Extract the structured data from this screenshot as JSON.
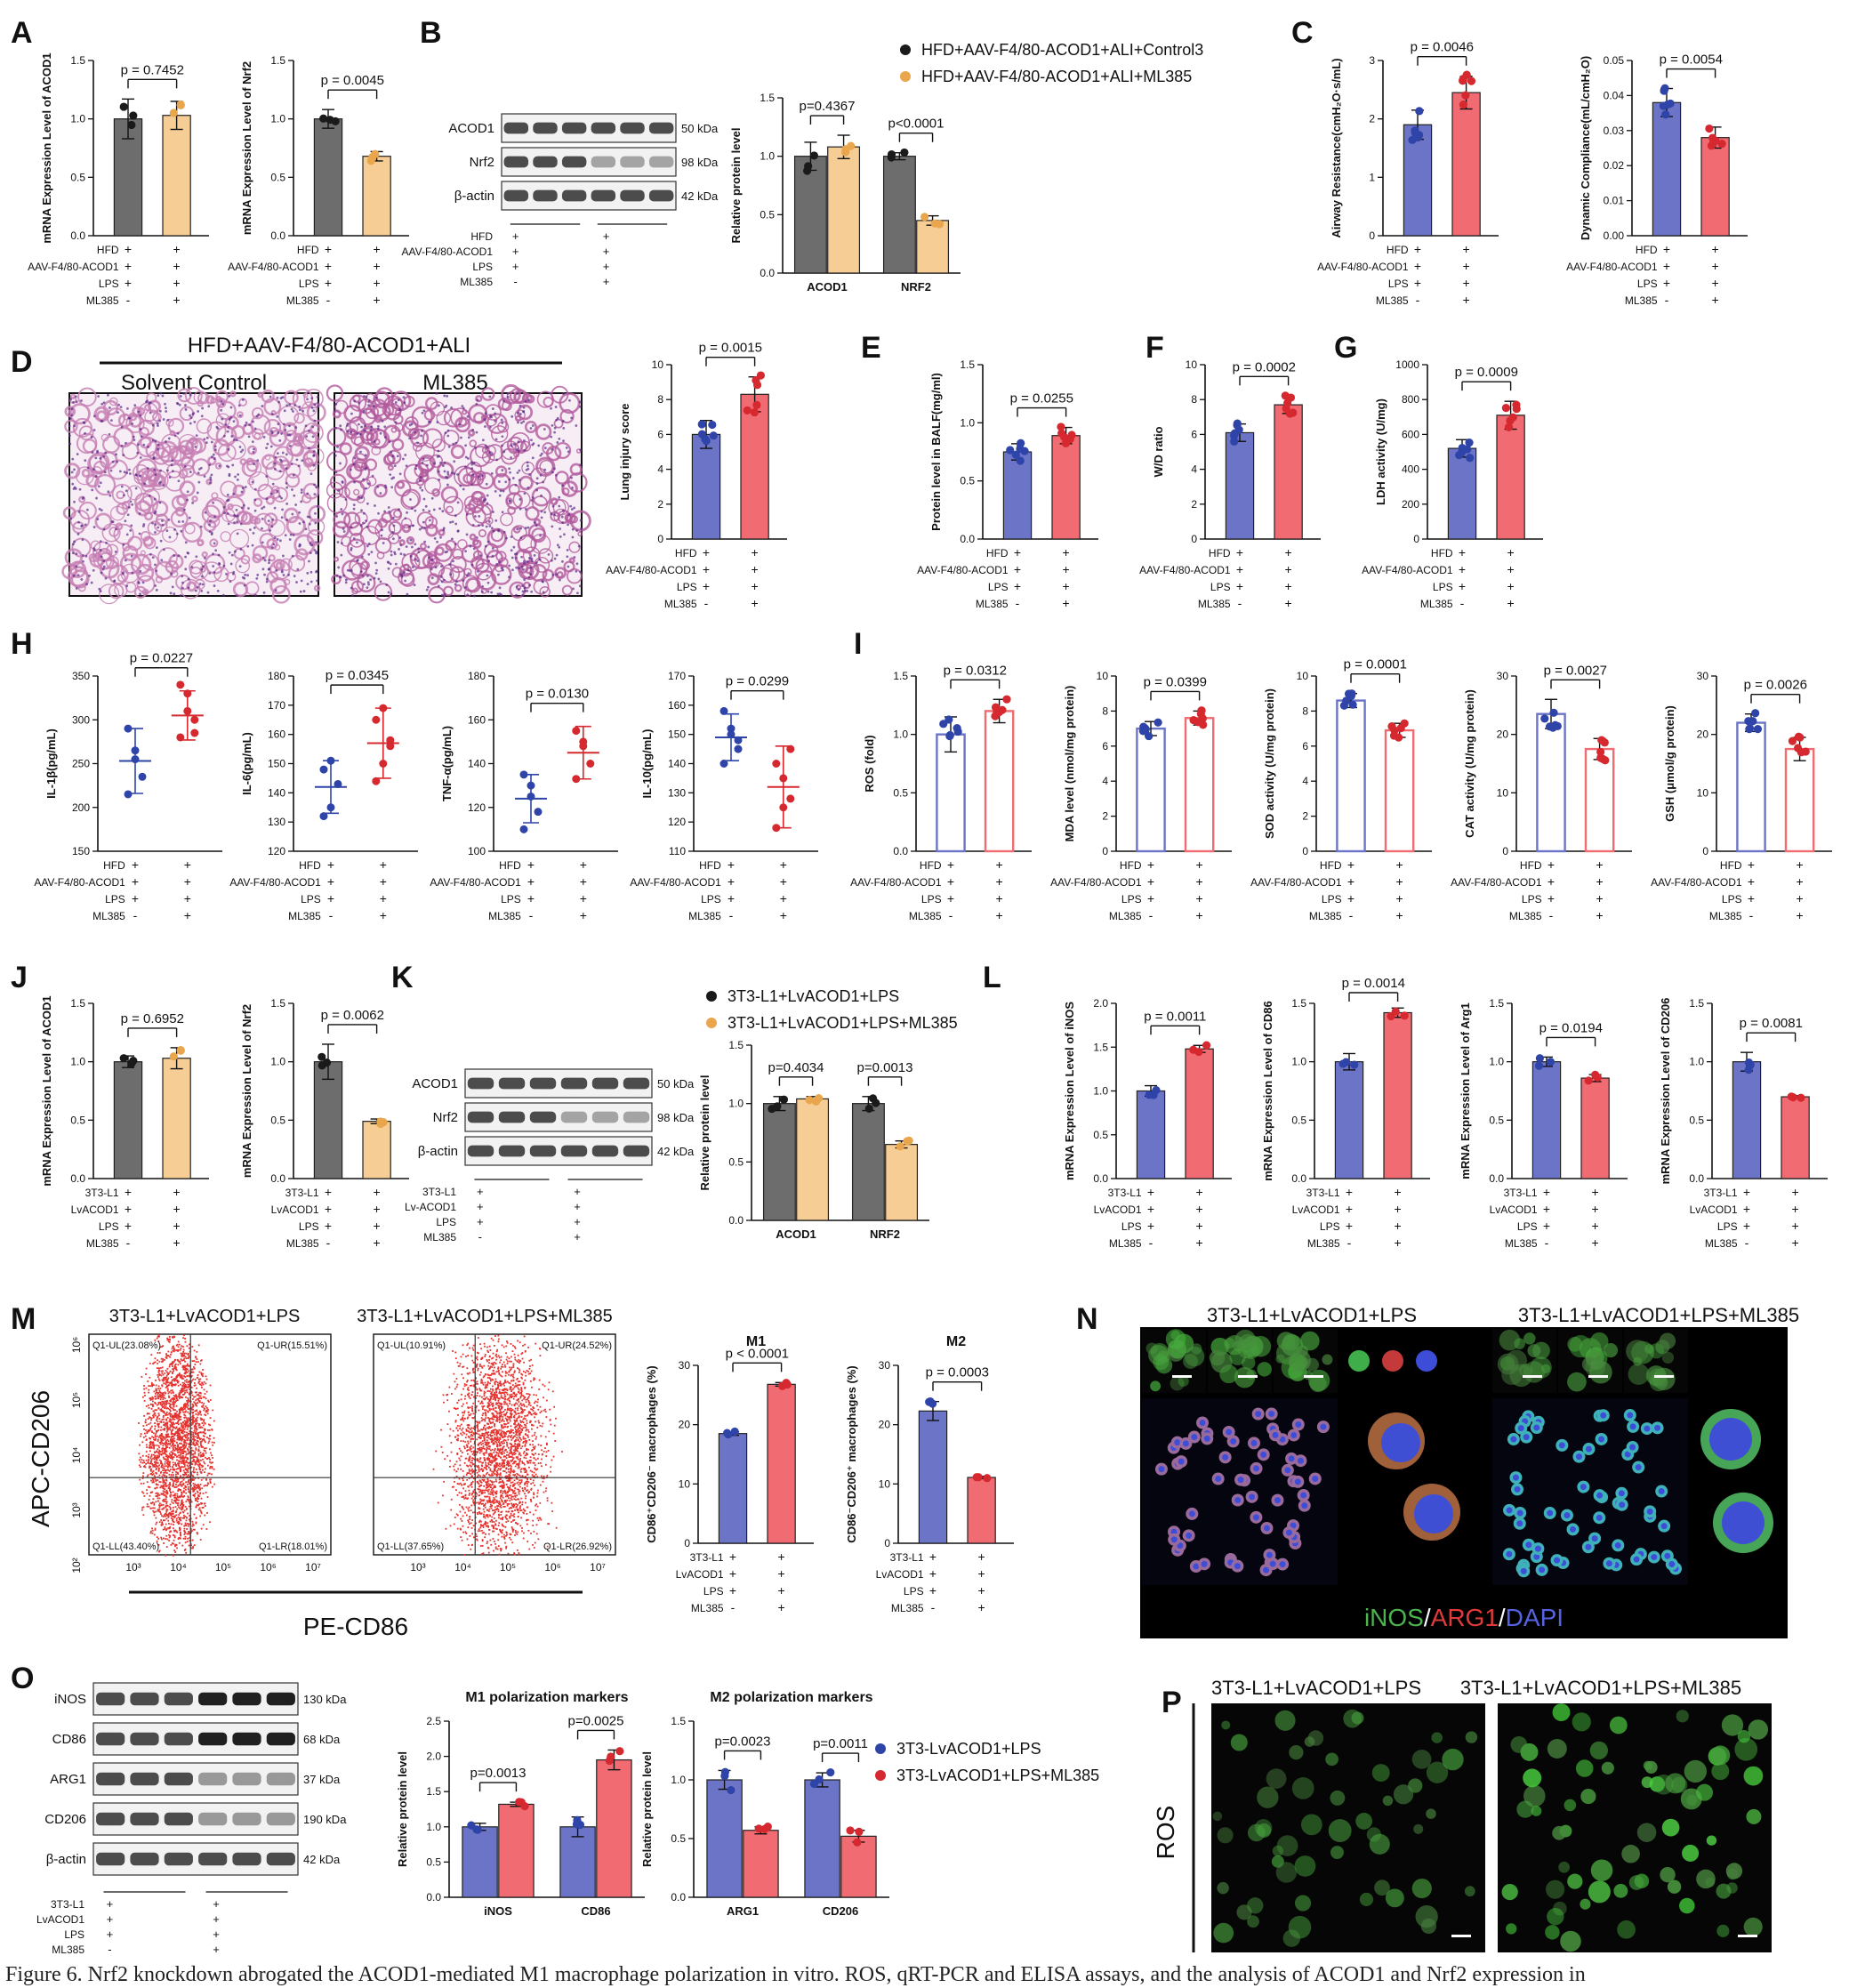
{
  "figure_caption": "Figure 6. Nrf2 knockdown abrogated the ACOD1-mediated M1 macrophage polarization in vitro. ROS, qRT-PCR and ELISA assays, and the analysis of ACOD1 and Nrf2 expression in",
  "colors": {
    "gray": "#6d6d6d",
    "tan": "#f6cd94",
    "tan_dot": "#e9a64c",
    "blue": "#6b74c6",
    "blue_dot": "#2f44a8",
    "red": "#f06b72",
    "red_dot": "#d6282f",
    "dot_dark": "#1a1a1a"
  },
  "conditions": {
    "hfd": [
      "HFD",
      "AAV-F4/80-ACOD1",
      "LPS",
      "ML385"
    ],
    "cell": [
      "3T3-L1",
      "LvACOD1",
      "LPS",
      "ML385"
    ],
    "signs": [
      [
        "+",
        "+",
        "+",
        "-"
      ],
      [
        "+",
        "+",
        "+",
        "+"
      ]
    ]
  },
  "panels": {
    "A": {
      "letter": "A"
    },
    "B": {
      "letter": "B"
    },
    "C": {
      "letter": "C"
    },
    "D": {
      "letter": "D"
    },
    "E": {
      "letter": "E"
    },
    "F": {
      "letter": "F"
    },
    "G": {
      "letter": "G"
    },
    "H": {
      "letter": "H"
    },
    "I": {
      "letter": "I"
    },
    "J": {
      "letter": "J"
    },
    "K": {
      "letter": "K"
    },
    "L": {
      "letter": "L"
    },
    "M": {
      "letter": "M"
    },
    "N": {
      "letter": "N"
    },
    "O": {
      "letter": "O"
    },
    "P": {
      "letter": "P"
    }
  },
  "legends": {
    "B": [
      "HFD+AAV-F4/80-ACOD1+ALI+Control3",
      "HFD+AAV-F4/80-ACOD1+ALI+ML385"
    ],
    "K": [
      "3T3-L1+LvACOD1+LPS",
      "3T3-L1+LvACOD1+LPS+ML385"
    ],
    "O": [
      "3T3-LvACOD1+LPS",
      "3T3-LvACOD1+LPS+ML385"
    ]
  },
  "blots": {
    "B": {
      "rows": [
        {
          "label": "ACOD1",
          "kda": "50 kDa"
        },
        {
          "label": "Nrf2",
          "kda": "98 kDa"
        },
        {
          "label": "β-actin",
          "kda": "42 kDa"
        }
      ],
      "cond": [
        "HFD",
        "AAV-F4/80-ACOD1",
        "LPS",
        "ML385"
      ]
    },
    "K": {
      "rows": [
        {
          "label": "ACOD1",
          "kda": "50 kDa"
        },
        {
          "label": "Nrf2",
          "kda": "98 kDa"
        },
        {
          "label": "β-actin",
          "kda": "42 kDa"
        }
      ],
      "cond": [
        "3T3-L1",
        "Lv-ACOD1",
        "LPS",
        "ML385"
      ]
    },
    "O": {
      "rows": [
        {
          "label": "iNOS",
          "kda": "130 kDa"
        },
        {
          "label": "CD86",
          "kda": "68 kDa"
        },
        {
          "label": "ARG1",
          "kda": "37 kDa"
        },
        {
          "label": "CD206",
          "kda": "190 kDa"
        },
        {
          "label": "β-actin",
          "kda": "42 kDa"
        }
      ],
      "cond": [
        "3T3-L1",
        "LvACOD1",
        "LPS",
        "ML385"
      ]
    }
  },
  "histology": {
    "header": "HFD+AAV-F4/80-ACOD1+ALI",
    "left": "Solvent Control",
    "right": "ML385"
  },
  "flow": {
    "titles": [
      "3T3-L1+LvACOD1+LPS",
      "3T3-L1+LvACOD1+LPS+ML385"
    ],
    "ylabel": "APC-CD206",
    "xlabel": "PE-CD86",
    "plots": [
      {
        "UL": "Q1-UL(23.08%)",
        "UR": "Q1-UR(15.51%)",
        "LL": "Q1-LL(43.40%)",
        "LR": "Q1-LR(18.01%)"
      },
      {
        "UL": "Q1-UL(10.91%)",
        "UR": "Q1-UR(24.52%)",
        "LL": "Q1-LL(37.65%)",
        "LR": "Q1-LR(26.92%)"
      }
    ],
    "xticks": [
      "10³",
      "10⁴",
      "10⁵",
      "10⁶",
      "10⁷"
    ],
    "yticks": [
      "10⁶",
      "10⁵",
      "10⁴",
      "10³",
      "10²"
    ]
  },
  "if_panel": {
    "titles": [
      "3T3-L1+LvACOD1+LPS",
      "3T3-L1+LvACOD1+LPS+ML385"
    ],
    "label_parts": [
      "iNOS",
      "/",
      "ARG1",
      "/",
      "DAPI"
    ]
  },
  "ros_panel": {
    "titles": [
      "3T3-L1+LvACOD1+LPS",
      "3T3-L1+LvACOD1+LPS+ML385"
    ],
    "ylabel": "ROS"
  },
  "chart_data": [
    {
      "id": "A1",
      "type": "bar",
      "ylabel": "mRNA Expression Level of ACOD1",
      "ylim": [
        0,
        1.5
      ],
      "yticks": [
        "0.0",
        "0.5",
        "1.0",
        "1.5"
      ],
      "values": [
        1.0,
        1.03
      ],
      "errors": [
        0.17,
        0.12
      ],
      "pvalue": "p = 0.7452",
      "style": "grayTan",
      "cond": "hfd"
    },
    {
      "id": "A2",
      "type": "bar",
      "ylabel": "mRNA Expression Level of Nrf2",
      "ylim": [
        0,
        1.5
      ],
      "yticks": [
        "0.0",
        "0.5",
        "1.0",
        "1.5"
      ],
      "values": [
        1.0,
        0.68
      ],
      "errors": [
        0.08,
        0.04
      ],
      "pvalue": "p = 0.0045",
      "style": "grayTan",
      "cond": "hfd"
    },
    {
      "id": "B",
      "type": "bar",
      "ylabel": "Relative protein level",
      "ylim": [
        0,
        1.5
      ],
      "yticks": [
        "0.0",
        "0.5",
        "1.0",
        "1.5"
      ],
      "categories": [
        "ACOD1",
        "NRF2"
      ],
      "values": [
        [
          1.0,
          1.08
        ],
        [
          1.0,
          0.45
        ]
      ],
      "errors": [
        [
          0.12,
          0.1
        ],
        [
          0.03,
          0.04
        ]
      ],
      "pvalues": [
        "p=0.4367",
        "p<0.0001"
      ],
      "style": "grayTan"
    },
    {
      "id": "C1",
      "type": "bar",
      "ylabel": "Airway Resistance(cmH₂O·s/mL)",
      "ylim": [
        0,
        3
      ],
      "yticks": [
        "0",
        "1",
        "2",
        "3"
      ],
      "values": [
        1.9,
        2.45
      ],
      "errors": [
        0.25,
        0.28
      ],
      "pvalue": "p = 0.0046",
      "style": "blueRed",
      "cond": "hfd"
    },
    {
      "id": "C2",
      "type": "bar",
      "ylabel": "Dynamic Compliance(mL/cmH₂O)",
      "ylim": [
        0,
        0.05
      ],
      "yticks": [
        "0.00",
        "0.01",
        "0.02",
        "0.03",
        "0.04",
        "0.05"
      ],
      "values": [
        0.038,
        0.028
      ],
      "errors": [
        0.004,
        0.003
      ],
      "pvalue": "p = 0.0054",
      "style": "blueRed",
      "cond": "hfd"
    },
    {
      "id": "D",
      "type": "bar",
      "ylabel": "Lung injury score",
      "ylim": [
        0,
        10
      ],
      "yticks": [
        "0",
        "2",
        "4",
        "6",
        "8",
        "10"
      ],
      "values": [
        6.0,
        8.3
      ],
      "errors": [
        0.8,
        1.0
      ],
      "pvalue": "p = 0.0015",
      "style": "blueRed",
      "cond": "hfd"
    },
    {
      "id": "E",
      "type": "bar",
      "ylabel": "Protein level in BALF(mg/ml)",
      "ylim": [
        0,
        1.5
      ],
      "yticks": [
        "0.0",
        "0.5",
        "1.0",
        "1.5"
      ],
      "values": [
        0.75,
        0.89
      ],
      "errors": [
        0.07,
        0.07
      ],
      "pvalue": "p = 0.0255",
      "style": "blueRed",
      "cond": "hfd"
    },
    {
      "id": "F",
      "type": "bar",
      "ylabel": "W/D ratio",
      "ylim": [
        0,
        10
      ],
      "yticks": [
        "0",
        "2",
        "4",
        "6",
        "8",
        "10"
      ],
      "values": [
        6.1,
        7.7
      ],
      "errors": [
        0.5,
        0.5
      ],
      "pvalue": "p = 0.0002",
      "style": "blueRed",
      "cond": "hfd"
    },
    {
      "id": "G",
      "type": "bar",
      "ylabel": "LDH activity (U/mg)",
      "ylim": [
        0,
        1000
      ],
      "yticks": [
        "0",
        "200",
        "400",
        "600",
        "800",
        "1000"
      ],
      "values": [
        520,
        710
      ],
      "errors": [
        50,
        80
      ],
      "pvalue": "p = 0.0009",
      "style": "blueRed",
      "cond": "hfd"
    },
    {
      "id": "H1",
      "type": "scatter",
      "ylabel": "IL-1β(pg/mL)",
      "ylim": [
        150,
        350
      ],
      "yticks": [
        "150",
        "200",
        "250",
        "300",
        "350"
      ],
      "means": [
        253,
        305
      ],
      "sds": [
        37,
        28
      ],
      "points": [
        [
          290,
          255,
          235,
          215,
          265
        ],
        [
          340,
          310,
          300,
          280,
          330,
          285
        ]
      ],
      "pvalue": "p = 0.0227",
      "cond": "hfd"
    },
    {
      "id": "H2",
      "type": "scatter",
      "ylabel": "IL-6(pg/mL)",
      "ylim": [
        120,
        180
      ],
      "yticks": [
        "120",
        "130",
        "140",
        "150",
        "160",
        "170",
        "180"
      ],
      "means": [
        142,
        157
      ],
      "sds": [
        9,
        12
      ],
      "points": [
        [
          148,
          135,
          143,
          132,
          151
        ],
        [
          165,
          150,
          158,
          144,
          169,
          156
        ]
      ],
      "pvalue": "p = 0.0345",
      "cond": "hfd"
    },
    {
      "id": "H3",
      "type": "scatter",
      "ylabel": "TNF-α(pg/mL)",
      "ylim": [
        100,
        180
      ],
      "yticks": [
        "100",
        "120",
        "140",
        "160",
        "180"
      ],
      "means": [
        124,
        145
      ],
      "sds": [
        11,
        12
      ],
      "points": [
        [
          135,
          125,
          118,
          110,
          130
        ],
        [
          155,
          148,
          140,
          133,
          150
        ]
      ],
      "pvalue": "p = 0.0130",
      "cond": "hfd"
    },
    {
      "id": "H4",
      "type": "scatter",
      "ylabel": "IL-10(pg/mL)",
      "ylim": [
        110,
        170
      ],
      "yticks": [
        "110",
        "120",
        "130",
        "140",
        "150",
        "160",
        "170"
      ],
      "means": [
        149,
        132
      ],
      "sds": [
        8,
        14
      ],
      "points": [
        [
          158,
          150,
          145,
          140,
          152,
          148
        ],
        [
          140,
          135,
          128,
          118,
          125,
          145
        ]
      ],
      "pvalue": "p = 0.0299",
      "cond": "hfd"
    },
    {
      "id": "I1",
      "type": "bar",
      "hollow": true,
      "ylabel": "ROS (fold)",
      "ylim": [
        0,
        1.5
      ],
      "yticks": [
        "0.0",
        "0.5",
        "1.0",
        "1.5"
      ],
      "values": [
        1.0,
        1.2
      ],
      "errors": [
        0.15,
        0.1
      ],
      "pvalue": "p = 0.0312",
      "cond": "hfd"
    },
    {
      "id": "I2",
      "type": "bar",
      "hollow": true,
      "ylabel": "MDA level (nmol/mg protein)",
      "ylim": [
        0,
        10
      ],
      "yticks": [
        "0",
        "2",
        "4",
        "6",
        "8",
        "10"
      ],
      "values": [
        7.0,
        7.6
      ],
      "errors": [
        0.4,
        0.4
      ],
      "pvalue": "p = 0.0399",
      "cond": "hfd"
    },
    {
      "id": "I3",
      "type": "bar",
      "hollow": true,
      "ylabel": "SOD activity (U/mg protein)",
      "ylim": [
        0,
        10
      ],
      "yticks": [
        "0",
        "2",
        "4",
        "6",
        "8",
        "10"
      ],
      "values": [
        8.6,
        6.9
      ],
      "errors": [
        0.4,
        0.4
      ],
      "pvalue": "p = 0.0001",
      "cond": "hfd"
    },
    {
      "id": "I4",
      "type": "bar",
      "hollow": true,
      "ylabel": "CAT activity (U/mg protein)",
      "ylim": [
        0,
        30
      ],
      "yticks": [
        "0",
        "10",
        "20",
        "30"
      ],
      "values": [
        23.5,
        17.5
      ],
      "errors": [
        2.5,
        1.8
      ],
      "pvalue": "p = 0.0027",
      "cond": "hfd"
    },
    {
      "id": "I5",
      "type": "bar",
      "hollow": true,
      "ylabel": "GSH (μmol/g protein)",
      "ylim": [
        0,
        30
      ],
      "yticks": [
        "0",
        "10",
        "20",
        "30"
      ],
      "values": [
        22.0,
        17.5
      ],
      "errors": [
        1.5,
        2.0
      ],
      "pvalue": "p = 0.0026",
      "cond": "hfd"
    },
    {
      "id": "J1",
      "type": "bar",
      "ylabel": "mRNA Expression Level of ACOD1",
      "ylim": [
        0,
        1.5
      ],
      "yticks": [
        "0.0",
        "0.5",
        "1.0",
        "1.5"
      ],
      "values": [
        1.0,
        1.03
      ],
      "errors": [
        0.05,
        0.09
      ],
      "pvalue": "p = 0.6952",
      "style": "grayTan",
      "cond": "cell"
    },
    {
      "id": "J2",
      "type": "bar",
      "ylabel": "mRNA Expression Level of Nrf2",
      "ylim": [
        0,
        1.5
      ],
      "yticks": [
        "0.0",
        "0.5",
        "1.0",
        "1.5"
      ],
      "values": [
        1.0,
        0.49
      ],
      "errors": [
        0.15,
        0.02
      ],
      "pvalue": "p = 0.0062",
      "style": "grayTan",
      "cond": "cell"
    },
    {
      "id": "K",
      "type": "bar",
      "ylabel": "Relative protein level",
      "ylim": [
        0,
        1.5
      ],
      "yticks": [
        "0.0",
        "0.5",
        "1.0",
        "1.5"
      ],
      "categories": [
        "ACOD1",
        "NRF2"
      ],
      "values": [
        [
          1.0,
          1.04
        ],
        [
          1.0,
          0.65
        ]
      ],
      "errors": [
        [
          0.06,
          0.02
        ],
        [
          0.06,
          0.03
        ]
      ],
      "pvalues": [
        "p=0.4034",
        "p=0.0013"
      ],
      "style": "grayTan"
    },
    {
      "id": "L1",
      "type": "bar",
      "ylabel": "mRNA Expression Level of iNOS",
      "ylim": [
        0,
        2.0
      ],
      "yticks": [
        "0.0",
        "0.5",
        "1.0",
        "1.5",
        "2.0"
      ],
      "values": [
        1.0,
        1.48
      ],
      "errors": [
        0.06,
        0.04
      ],
      "pvalue": "p = 0.0011",
      "style": "blueRed",
      "cond": "cell"
    },
    {
      "id": "L2",
      "type": "bar",
      "ylabel": "mRNA Expression Level of CD86",
      "ylim": [
        0,
        1.5
      ],
      "yticks": [
        "0.0",
        "0.5",
        "1.0",
        "1.5"
      ],
      "values": [
        1.0,
        1.42
      ],
      "errors": [
        0.07,
        0.04
      ],
      "pvalue": "p = 0.0014",
      "style": "blueRed",
      "cond": "cell"
    },
    {
      "id": "L3",
      "type": "bar",
      "ylabel": "mRNA Expression Level of Arg1",
      "ylim": [
        0,
        1.5
      ],
      "yticks": [
        "0.0",
        "0.5",
        "1.0",
        "1.5"
      ],
      "values": [
        1.0,
        0.86
      ],
      "errors": [
        0.04,
        0.03
      ],
      "pvalue": "p = 0.0194",
      "style": "blueRed",
      "cond": "cell"
    },
    {
      "id": "L4",
      "type": "bar",
      "ylabel": "mRNA Expression Level of CD206",
      "ylim": [
        0,
        1.5
      ],
      "yticks": [
        "0.0",
        "0.5",
        "1.0",
        "1.5"
      ],
      "values": [
        1.0,
        0.7
      ],
      "errors": [
        0.08,
        0.01
      ],
      "pvalue": "p = 0.0081",
      "style": "blueRed",
      "cond": "cell"
    },
    {
      "id": "M1",
      "type": "bar",
      "title": "M1",
      "ylabel": "CD86⁺CD206⁻ macrophages (%)",
      "ylim": [
        0,
        30
      ],
      "yticks": [
        "0",
        "10",
        "20",
        "30"
      ],
      "values": [
        18.5,
        26.8
      ],
      "errors": [
        0.3,
        0.3
      ],
      "pvalue": "p < 0.0001",
      "style": "blueRed",
      "cond": "cell"
    },
    {
      "id": "M2",
      "type": "bar",
      "title": "M2",
      "ylabel": "CD86⁻CD206⁺ macrophages (%)",
      "ylim": [
        0,
        30
      ],
      "yticks": [
        "0",
        "10",
        "20",
        "30"
      ],
      "values": [
        22.3,
        11.1
      ],
      "errors": [
        1.6,
        0.2
      ],
      "pvalue": "p = 0.0003",
      "style": "blueRed",
      "cond": "cell"
    },
    {
      "id": "O1",
      "type": "bar",
      "title": "M1 polarization markers",
      "ylabel": "Relative protein level",
      "ylim": [
        0,
        2.5
      ],
      "yticks": [
        "0.0",
        "0.5",
        "1.0",
        "1.5",
        "2.0",
        "2.5"
      ],
      "categories": [
        "iNOS",
        "CD86"
      ],
      "values": [
        [
          1.0,
          1.32
        ],
        [
          1.0,
          1.95
        ]
      ],
      "errors": [
        [
          0.05,
          0.03
        ],
        [
          0.14,
          0.14
        ]
      ],
      "pvalues": [
        "p=0.0013",
        "p=0.0025"
      ],
      "style": "blueRed"
    },
    {
      "id": "O2",
      "type": "bar",
      "title": "M2 polarization markers",
      "ylabel": "Relative protein level",
      "ylim": [
        0,
        1.5
      ],
      "yticks": [
        "0.0",
        "0.5",
        "1.0",
        "1.5"
      ],
      "categories": [
        "ARG1",
        "CD206"
      ],
      "values": [
        [
          1.0,
          0.57
        ],
        [
          1.0,
          0.52
        ]
      ],
      "errors": [
        [
          0.08,
          0.03
        ],
        [
          0.06,
          0.05
        ]
      ],
      "pvalues": [
        "p=0.0023",
        "p=0.0011"
      ],
      "style": "blueRed"
    }
  ]
}
